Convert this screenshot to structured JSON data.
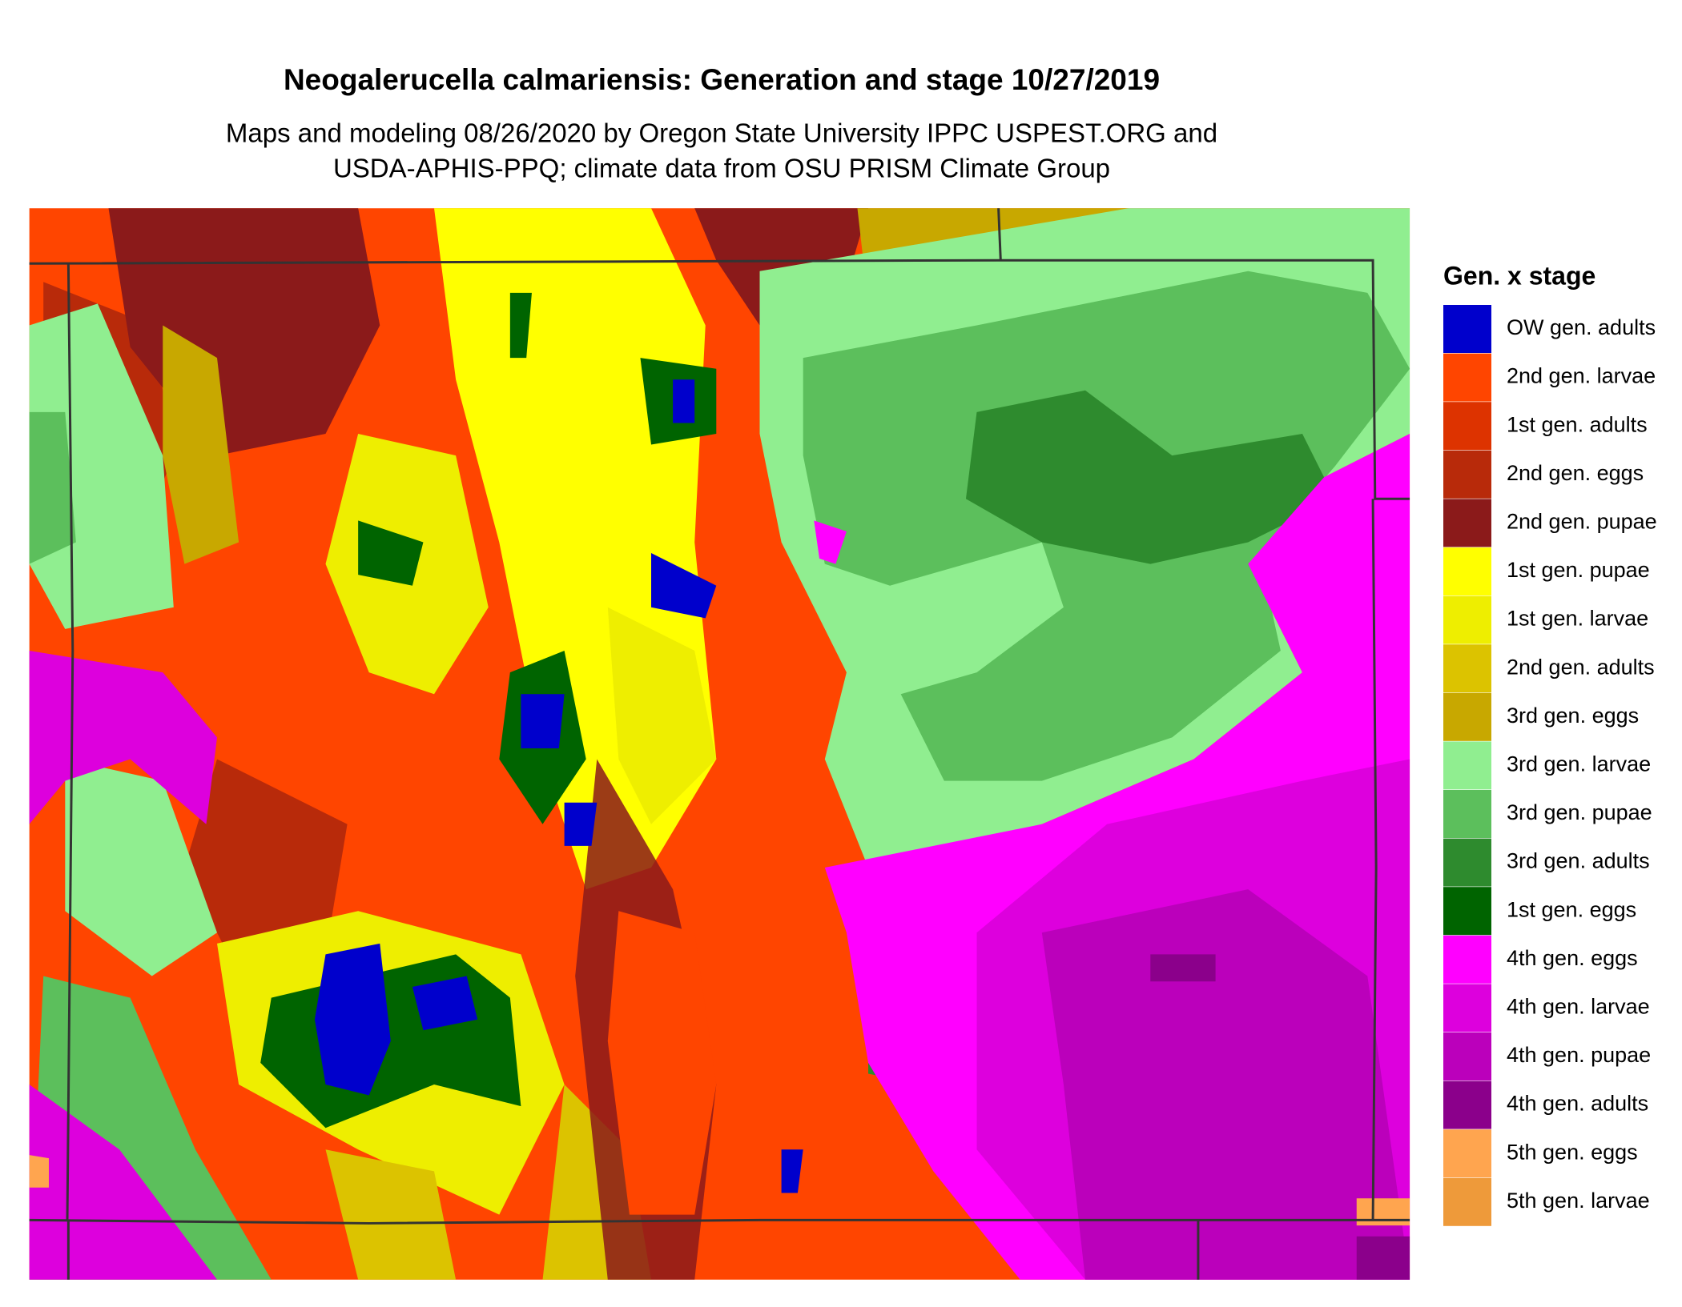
{
  "header": {
    "title": "Neogalerucella calmariensis: Generation and stage 10/27/2019",
    "subtitle_lines": [
      "Maps and modeling 08/26/2020 by Oregon State University IPPC USPEST.ORG and",
      "USDA-APHIS-PPQ; climate data from OSU PRISM Climate Group"
    ]
  },
  "legend": {
    "title": "Gen. x stage",
    "items": [
      {
        "label": "OW gen. adults",
        "color": "#0000cc"
      },
      {
        "label": "2nd gen. larvae",
        "color": "#ff4500"
      },
      {
        "label": "1st gen. adults",
        "color": "#dd3300"
      },
      {
        "label": "2nd gen. eggs",
        "color": "#b82a0a"
      },
      {
        "label": "2nd gen. pupae",
        "color": "#8b1a1a"
      },
      {
        "label": "1st gen. pupae",
        "color": "#ffff00"
      },
      {
        "label": "1st gen. larvae",
        "color": "#eeee00"
      },
      {
        "label": "2nd gen. adults",
        "color": "#dcc300"
      },
      {
        "label": "3rd gen. eggs",
        "color": "#c8a800"
      },
      {
        "label": "3rd gen. larvae",
        "color": "#90ee90"
      },
      {
        "label": "3rd gen. pupae",
        "color": "#5cbf5c"
      },
      {
        "label": "3rd gen. adults",
        "color": "#2e8b2e"
      },
      {
        "label": "1st gen. eggs",
        "color": "#006400"
      },
      {
        "label": "4th gen. eggs",
        "color": "#ff00ff"
      },
      {
        "label": "4th gen. larvae",
        "color": "#dd00dd"
      },
      {
        "label": "4th gen. pupae",
        "color": "#bb00bb"
      },
      {
        "label": "4th gen. adults",
        "color": "#8b008b"
      },
      {
        "label": "5th gen. eggs",
        "color": "#ffa54f"
      },
      {
        "label": "5th gen. larvae",
        "color": "#ee9a3a"
      }
    ]
  }
}
